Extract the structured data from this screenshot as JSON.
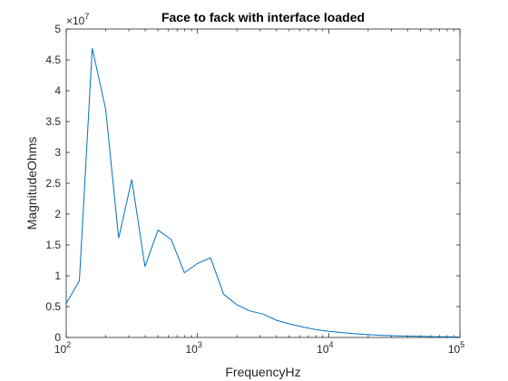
{
  "chart_data": {
    "type": "line",
    "title": "Face to fack with interface loaded",
    "xlabel": "FrequencyHz",
    "ylabel": "MagnitudeOhms",
    "xscale": "log",
    "xlim": [
      100,
      100000
    ],
    "ylim": [
      0,
      50000000
    ],
    "y_exponent_label": {
      "base": "×10",
      "power": "7"
    },
    "x_ticks": [
      {
        "value": 100,
        "base": "10",
        "power": "2"
      },
      {
        "value": 1000,
        "base": "10",
        "power": "3"
      },
      {
        "value": 10000,
        "base": "10",
        "power": "4"
      },
      {
        "value": 100000,
        "base": "10",
        "power": "5"
      }
    ],
    "y_ticks": [
      {
        "value": 0,
        "label": "0"
      },
      {
        "value": 5000000,
        "label": "0.5"
      },
      {
        "value": 10000000,
        "label": "1"
      },
      {
        "value": 15000000,
        "label": "1.5"
      },
      {
        "value": 20000000,
        "label": "2"
      },
      {
        "value": 25000000,
        "label": "2.5"
      },
      {
        "value": 30000000,
        "label": "3"
      },
      {
        "value": 35000000,
        "label": "3.5"
      },
      {
        "value": 40000000,
        "label": "4"
      },
      {
        "value": 45000000,
        "label": "4.5"
      },
      {
        "value": 50000000,
        "label": "5"
      }
    ],
    "grid": false,
    "line_color": "#0072bd",
    "series": [
      {
        "x": [
          100,
          126,
          158,
          200,
          251,
          316,
          398,
          501,
          631,
          794,
          1000,
          1259,
          1585,
          1995,
          2512,
          3162,
          3981,
          5012,
          6310,
          7943,
          10000,
          12589,
          15849,
          19953,
          25119,
          31623,
          39811,
          50119,
          63096,
          79433,
          100000
        ],
        "y": [
          5500000,
          9200000,
          46900000,
          37000000,
          16100000,
          25600000,
          11500000,
          17400000,
          15900000,
          10500000,
          12000000,
          12900000,
          7000000,
          5300000,
          4300000,
          3800000,
          2800000,
          2200000,
          1700000,
          1300000,
          1000000,
          800000,
          600000,
          450000,
          350000,
          280000,
          220000,
          170000,
          130000,
          100000,
          80000
        ]
      }
    ]
  }
}
